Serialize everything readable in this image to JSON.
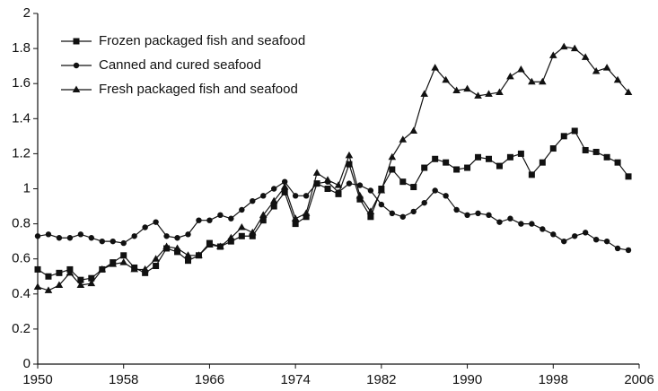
{
  "chart_data": {
    "type": "line",
    "x": [
      1950,
      1951,
      1952,
      1953,
      1954,
      1955,
      1956,
      1957,
      1958,
      1959,
      1960,
      1961,
      1962,
      1963,
      1964,
      1965,
      1966,
      1967,
      1968,
      1969,
      1970,
      1971,
      1972,
      1973,
      1974,
      1975,
      1976,
      1977,
      1978,
      1979,
      1980,
      1981,
      1982,
      1983,
      1984,
      1985,
      1986,
      1987,
      1988,
      1989,
      1990,
      1991,
      1992,
      1993,
      1994,
      1995,
      1996,
      1997,
      1998,
      1999,
      2000,
      2001,
      2002,
      2003,
      2004,
      2005
    ],
    "xlim": [
      1950,
      2006
    ],
    "xticks": [
      1950,
      1958,
      1966,
      1974,
      1982,
      1990,
      1998,
      2006
    ],
    "ylim": [
      0,
      2
    ],
    "yticks": [
      0,
      0.2,
      0.4,
      0.6,
      0.8,
      1,
      1.2,
      1.4,
      1.6,
      1.8,
      2
    ],
    "legend": "upper left",
    "series": [
      {
        "name": "Frozen packaged fish and seafood",
        "color": "#111111",
        "marker": "square",
        "values": [
          0.54,
          0.5,
          0.52,
          0.54,
          0.48,
          0.49,
          0.54,
          0.58,
          0.62,
          0.55,
          0.52,
          0.56,
          0.66,
          0.64,
          0.59,
          0.62,
          0.69,
          0.67,
          0.7,
          0.73,
          0.73,
          0.82,
          0.9,
          0.98,
          0.8,
          0.84,
          1.03,
          1.0,
          0.97,
          1.14,
          0.94,
          0.84,
          1.0,
          1.11,
          1.04,
          1.01,
          1.12,
          1.17,
          1.15,
          1.11,
          1.12,
          1.18,
          1.17,
          1.13,
          1.18,
          1.2,
          1.08,
          1.15,
          1.23,
          1.3,
          1.33,
          1.22,
          1.21,
          1.18,
          1.15,
          1.07
        ]
      },
      {
        "name": "Canned and cured seafood",
        "color": "#111111",
        "marker": "circle",
        "values": [
          0.73,
          0.74,
          0.72,
          0.72,
          0.74,
          0.72,
          0.7,
          0.7,
          0.69,
          0.73,
          0.78,
          0.81,
          0.73,
          0.72,
          0.74,
          0.82,
          0.82,
          0.85,
          0.83,
          0.88,
          0.93,
          0.96,
          1.0,
          1.04,
          0.96,
          0.96,
          1.03,
          1.04,
          0.98,
          1.03,
          1.02,
          0.99,
          0.91,
          0.86,
          0.84,
          0.87,
          0.92,
          0.99,
          0.96,
          0.88,
          0.85,
          0.86,
          0.85,
          0.81,
          0.83,
          0.8,
          0.8,
          0.77,
          0.74,
          0.7,
          0.73,
          0.75,
          0.71,
          0.7,
          0.66,
          0.65
        ]
      },
      {
        "name": "Fresh packaged fish and seafood",
        "color": "#111111",
        "marker": "triangle",
        "values": [
          0.44,
          0.42,
          0.45,
          0.52,
          0.45,
          0.46,
          0.54,
          0.57,
          0.58,
          0.54,
          0.54,
          0.6,
          0.67,
          0.66,
          0.62,
          0.62,
          0.68,
          0.67,
          0.72,
          0.78,
          0.75,
          0.85,
          0.93,
          1.01,
          0.83,
          0.86,
          1.09,
          1.05,
          1.02,
          1.19,
          0.96,
          0.87,
          0.99,
          1.18,
          1.28,
          1.33,
          1.54,
          1.69,
          1.62,
          1.56,
          1.57,
          1.53,
          1.54,
          1.55,
          1.64,
          1.68,
          1.61,
          1.61,
          1.76,
          1.81,
          1.8,
          1.75,
          1.67,
          1.69,
          1.62,
          1.55
        ]
      }
    ]
  }
}
